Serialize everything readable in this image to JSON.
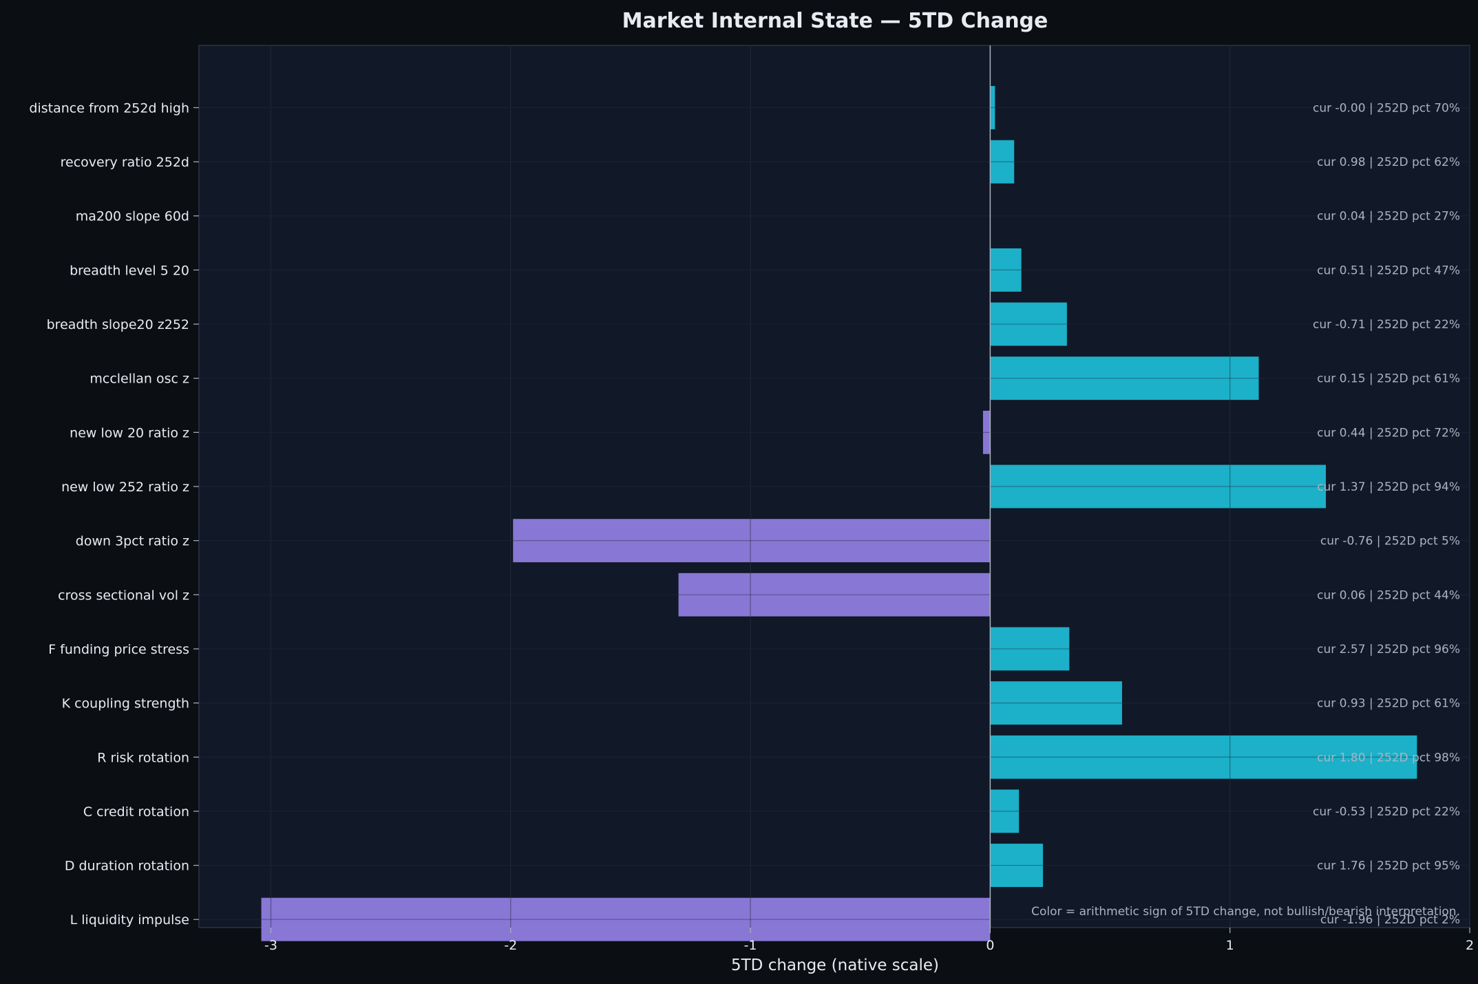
{
  "chart_data": {
    "type": "bar",
    "orientation": "horizontal",
    "title": "Market Internal State — 5TD Change",
    "xlabel": "5TD change (native scale)",
    "xlim": [
      -3.3,
      2.0
    ],
    "xticks": [
      -3,
      -2,
      -1,
      0,
      1,
      2
    ],
    "xtick_labels": [
      "-3",
      "-2",
      "-1",
      "0",
      "1",
      "2"
    ],
    "grid": true,
    "colors": {
      "positive": "#1cb0c9",
      "negative": "#8877d4",
      "background": "#0b0f14",
      "plot_bg": "#111827",
      "text": "#e8ecf1",
      "muted": "#aab4c0"
    },
    "categories": [
      "distance from 252d high",
      "recovery ratio 252d",
      "ma200 slope 60d",
      "breadth level 5 20",
      "breadth slope20 z252",
      "mcclellan osc z",
      "new low 20 ratio z",
      "new low 252 ratio z",
      "down 3pct ratio z",
      "cross sectional vol z",
      "F funding price stress",
      "K coupling strength",
      "R risk rotation",
      "C credit rotation",
      "D duration rotation",
      "L liquidity impulse"
    ],
    "values": [
      0.02,
      0.1,
      0.0,
      0.13,
      0.32,
      1.12,
      -0.03,
      1.4,
      -1.99,
      -1.3,
      0.33,
      0.55,
      1.78,
      0.12,
      0.22,
      -3.04
    ],
    "annotations": [
      "cur -0.00 | 252D pct 70%",
      "cur 0.98 | 252D pct 62%",
      "cur 0.04 | 252D pct 27%",
      "cur 0.51 | 252D pct 47%",
      "cur -0.71 | 252D pct 22%",
      "cur 0.15 | 252D pct 61%",
      "cur 0.44 | 252D pct 72%",
      "cur 1.37 | 252D pct 94%",
      "cur -0.76 | 252D pct 5%",
      "cur 0.06 | 252D pct 44%",
      "cur 2.57 | 252D pct 96%",
      "cur 0.93 | 252D pct 61%",
      "cur 1.80 | 252D pct 98%",
      "cur -0.53 | 252D pct 22%",
      "cur 1.76 | 252D pct 95%",
      "cur -1.96 | 252D pct 2%"
    ],
    "note": "Color = arithmetic sign of 5TD change, not bullish/bearish interpretation."
  }
}
